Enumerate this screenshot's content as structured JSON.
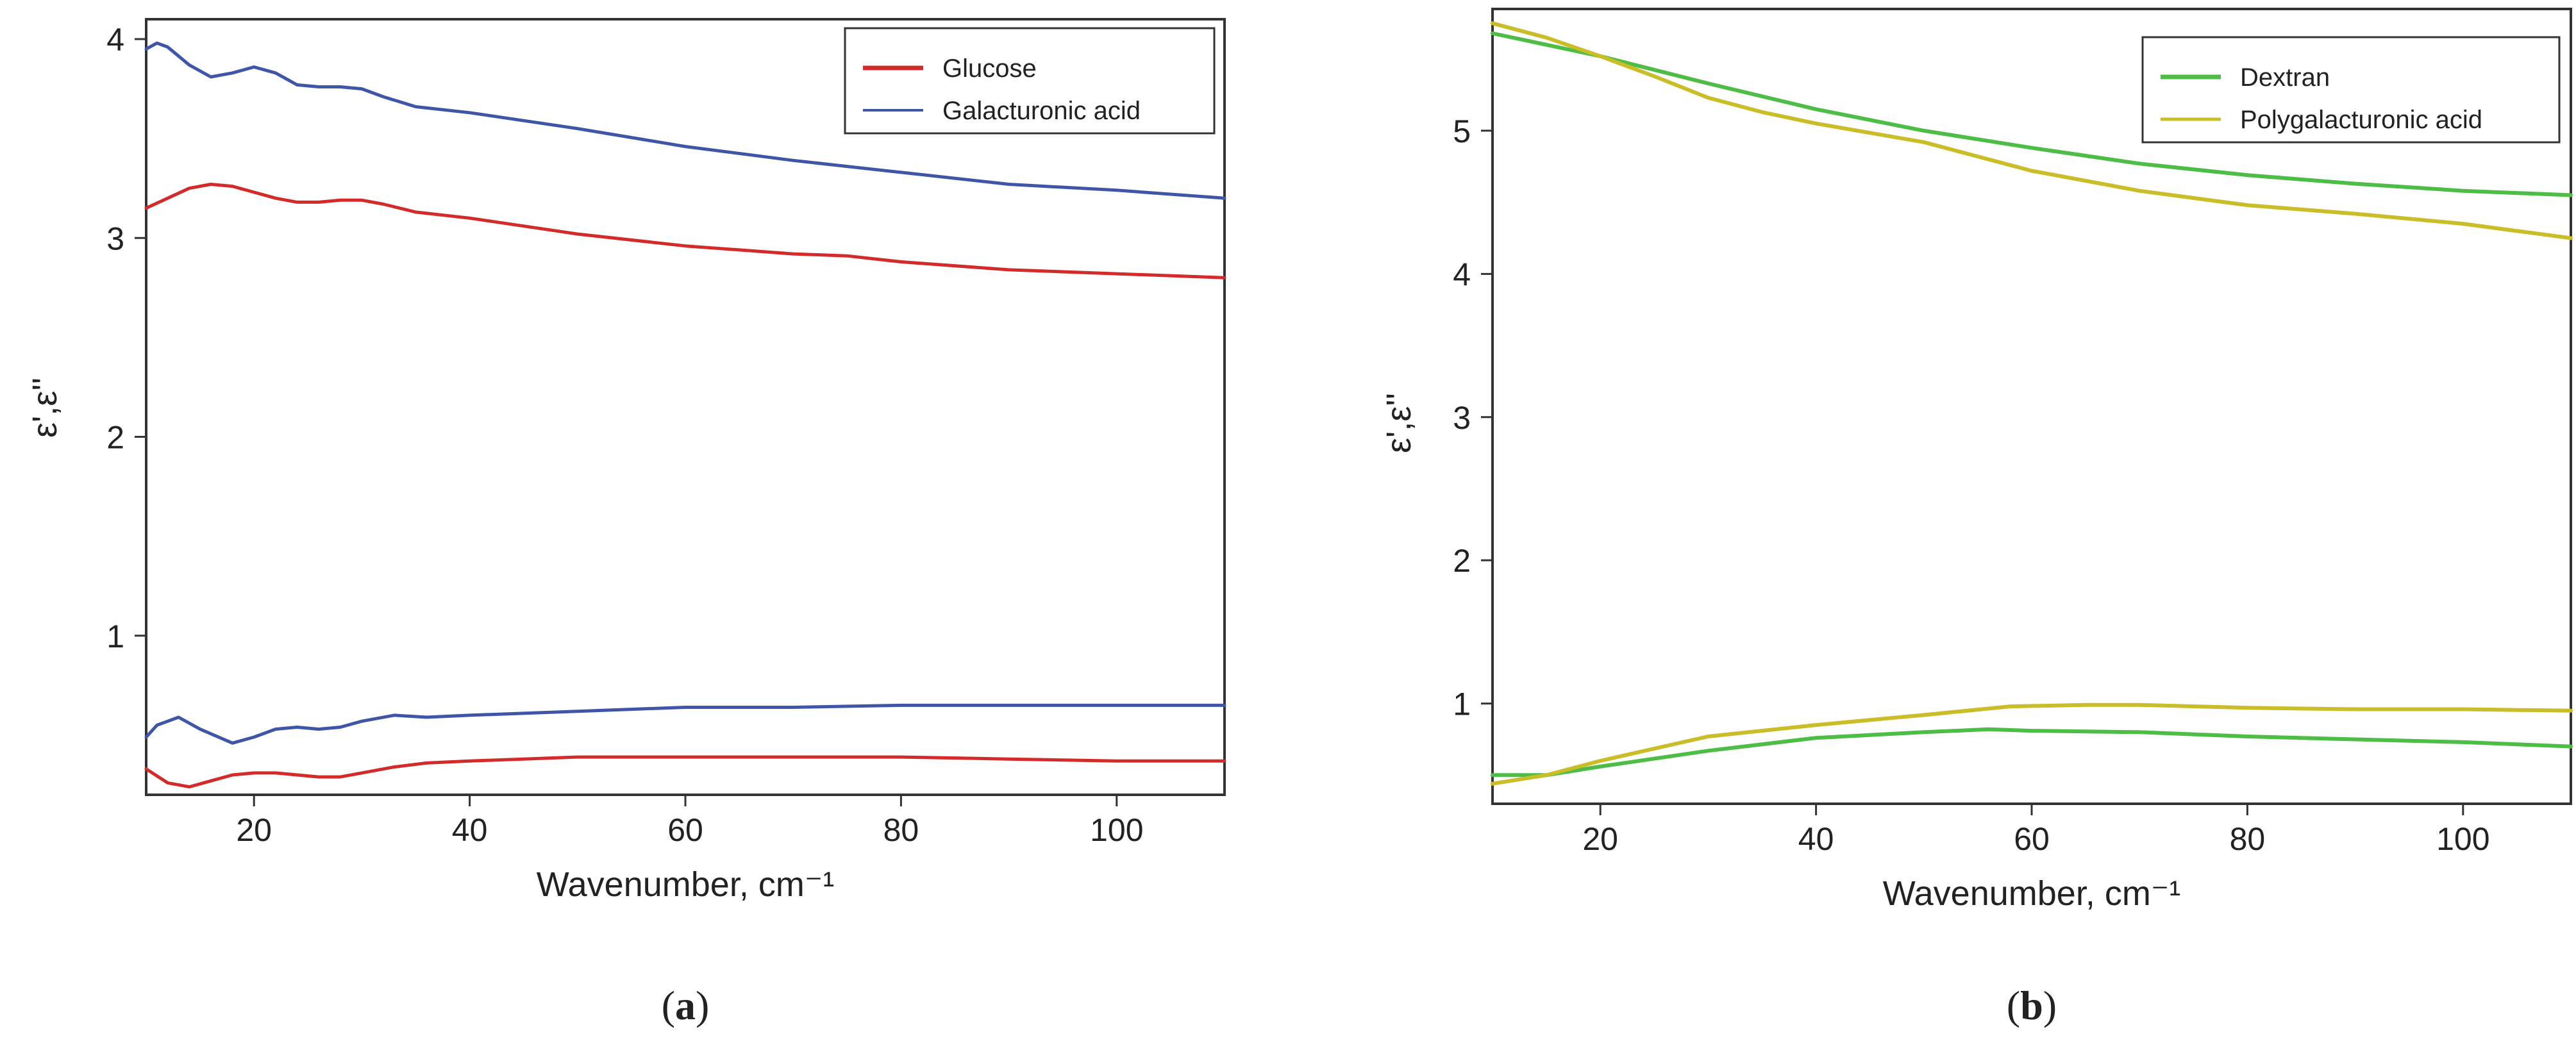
{
  "chart_data": [
    {
      "type": "line",
      "panel_label": {
        "open": "(",
        "letter": "a",
        "close": ")"
      },
      "title": "",
      "xlabel": "Wavenumber, cm⁻¹",
      "ylabel": "ε',ε''",
      "xlim": [
        10,
        110
      ],
      "ylim": [
        0.2,
        4.1
      ],
      "xticks": [
        20,
        40,
        60,
        80,
        100
      ],
      "xtick_labels": [
        "20",
        "40",
        "60",
        "80",
        "100"
      ],
      "yticks": [
        1,
        2,
        3,
        4
      ],
      "ytick_labels": [
        "1",
        "2",
        "3",
        "4"
      ],
      "grid": false,
      "legend_position": "top-right",
      "legend": [
        {
          "label": "Glucose",
          "color": "#d32a2a"
        },
        {
          "label": "Galacturonic acid",
          "color": "#3f55a8"
        }
      ],
      "series": [
        {
          "name": "Glucose ε'",
          "legend": "Glucose",
          "color": "#d32a2a",
          "x": [
            10,
            12,
            14,
            16,
            18,
            20,
            22,
            24,
            26,
            28,
            30,
            32,
            35,
            40,
            50,
            60,
            70,
            75,
            80,
            90,
            100,
            110
          ],
          "y": [
            3.15,
            3.2,
            3.25,
            3.27,
            3.26,
            3.23,
            3.2,
            3.18,
            3.18,
            3.19,
            3.19,
            3.17,
            3.13,
            3.1,
            3.02,
            2.96,
            2.92,
            2.91,
            2.88,
            2.84,
            2.82,
            2.8
          ]
        },
        {
          "name": "Glucose ε''",
          "legend": "Glucose",
          "color": "#d32a2a",
          "x": [
            10,
            12,
            14,
            16,
            18,
            20,
            22,
            24,
            26,
            28,
            30,
            33,
            36,
            40,
            50,
            60,
            70,
            80,
            90,
            100,
            110
          ],
          "y": [
            0.33,
            0.26,
            0.24,
            0.27,
            0.3,
            0.31,
            0.31,
            0.3,
            0.29,
            0.29,
            0.31,
            0.34,
            0.36,
            0.37,
            0.39,
            0.39,
            0.39,
            0.39,
            0.38,
            0.37,
            0.37
          ]
        },
        {
          "name": "Galacturonic acid ε'",
          "legend": "Galacturonic acid",
          "color": "#3f55a8",
          "x": [
            10,
            11,
            12,
            14,
            16,
            18,
            20,
            22,
            24,
            26,
            28,
            30,
            32,
            35,
            40,
            50,
            60,
            70,
            80,
            90,
            100,
            110
          ],
          "y": [
            3.95,
            3.98,
            3.96,
            3.87,
            3.81,
            3.83,
            3.86,
            3.83,
            3.77,
            3.76,
            3.76,
            3.75,
            3.71,
            3.66,
            3.63,
            3.55,
            3.46,
            3.39,
            3.33,
            3.27,
            3.24,
            3.2
          ]
        },
        {
          "name": "Galacturonic acid ε''",
          "legend": "Galacturonic acid",
          "color": "#3f55a8",
          "x": [
            10,
            11,
            13,
            15,
            18,
            20,
            22,
            24,
            26,
            28,
            30,
            33,
            36,
            40,
            50,
            60,
            70,
            80,
            90,
            100,
            110
          ],
          "y": [
            0.49,
            0.55,
            0.59,
            0.53,
            0.46,
            0.49,
            0.53,
            0.54,
            0.53,
            0.54,
            0.57,
            0.6,
            0.59,
            0.6,
            0.62,
            0.64,
            0.64,
            0.65,
            0.65,
            0.65,
            0.65
          ]
        }
      ]
    },
    {
      "type": "line",
      "panel_label": {
        "open": "(",
        "letter": "b",
        "close": ")"
      },
      "title": "",
      "xlabel": "Wavenumber, cm⁻¹",
      "ylabel": "ε',ε''",
      "xlim": [
        10,
        110
      ],
      "ylim": [
        0.3,
        5.85
      ],
      "xticks": [
        20,
        40,
        60,
        80,
        100
      ],
      "xtick_labels": [
        "20",
        "40",
        "60",
        "80",
        "100"
      ],
      "yticks": [
        1,
        2,
        3,
        4,
        5
      ],
      "ytick_labels": [
        "1",
        "2",
        "3",
        "4",
        "5"
      ],
      "grid": false,
      "legend_position": "top-right",
      "legend": [
        {
          "label": "Dextran",
          "color": "#4dbd45"
        },
        {
          "label": "Polygalacturonic acid",
          "color": "#c9bd28"
        }
      ],
      "series": [
        {
          "name": "Dextran ε'",
          "legend": "Dextran",
          "color": "#4dbd45",
          "x": [
            10,
            20,
            30,
            40,
            50,
            60,
            70,
            80,
            90,
            100,
            110
          ],
          "y": [
            5.68,
            5.52,
            5.33,
            5.15,
            5.0,
            4.88,
            4.77,
            4.69,
            4.63,
            4.58,
            4.55
          ]
        },
        {
          "name": "Polygalacturonic acid ε'",
          "legend": "Polygalacturonic acid",
          "color": "#c9bd28",
          "x": [
            10,
            15,
            20,
            25,
            30,
            35,
            40,
            50,
            60,
            70,
            80,
            90,
            100,
            110
          ],
          "y": [
            5.75,
            5.65,
            5.52,
            5.38,
            5.23,
            5.13,
            5.05,
            4.92,
            4.72,
            4.58,
            4.48,
            4.42,
            4.35,
            4.25
          ]
        },
        {
          "name": "Dextran ε''",
          "legend": "Dextran",
          "color": "#4dbd45",
          "x": [
            10,
            15,
            20,
            30,
            40,
            50,
            56,
            60,
            70,
            80,
            90,
            100,
            110
          ],
          "y": [
            0.5,
            0.5,
            0.56,
            0.67,
            0.76,
            0.8,
            0.82,
            0.81,
            0.8,
            0.77,
            0.75,
            0.73,
            0.7
          ]
        },
        {
          "name": "Polygalacturonic acid ε''",
          "legend": "Polygalacturonic acid",
          "color": "#c9bd28",
          "x": [
            10,
            15,
            20,
            30,
            40,
            50,
            58,
            65,
            70,
            80,
            90,
            100,
            110
          ],
          "y": [
            0.44,
            0.5,
            0.6,
            0.77,
            0.85,
            0.92,
            0.98,
            0.99,
            0.99,
            0.97,
            0.96,
            0.96,
            0.95
          ]
        }
      ]
    }
  ]
}
